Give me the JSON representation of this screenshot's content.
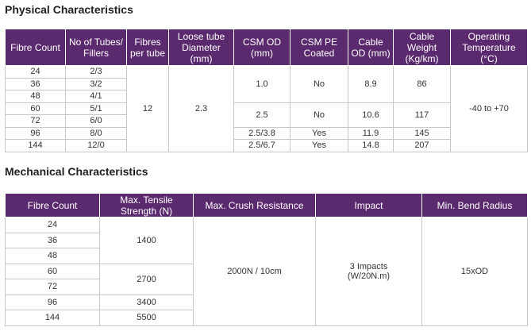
{
  "physical": {
    "title": "Physical Characteristics",
    "headers": {
      "fibre_count": "Fibre Count",
      "tubes_fillers": "No of Tubes/ Fillers",
      "fibres_per_tube": "Fibres per tube",
      "loose_tube_diameter": "Loose tube Diameter (mm)",
      "csm_od": "CSM OD (mm)",
      "csm_pe_coated": "CSM PE Coated",
      "cable_od": "Cable OD (mm)",
      "cable_weight": "Cable Weight (Kg/km)",
      "operating_temperature": "Operating Temperature (°C)"
    },
    "rows": [
      {
        "fibre_count": "24",
        "tubes_fillers": "2/3"
      },
      {
        "fibre_count": "36",
        "tubes_fillers": "3/2"
      },
      {
        "fibre_count": "48",
        "tubes_fillers": "4/1"
      },
      {
        "fibre_count": "60",
        "tubes_fillers": "5/1"
      },
      {
        "fibre_count": "72",
        "tubes_fillers": "6/0"
      },
      {
        "fibre_count": "96",
        "tubes_fillers": "8/0"
      },
      {
        "fibre_count": "144",
        "tubes_fillers": "12/0"
      }
    ],
    "fibres_per_tube": "12",
    "loose_tube_diameter": "2.3",
    "groups": [
      {
        "csm_od": "1.0",
        "csm_pe_coated": "No",
        "cable_od": "8.9",
        "cable_weight": "86"
      },
      {
        "csm_od": "2.5",
        "csm_pe_coated": "No",
        "cable_od": "10.6",
        "cable_weight": "117"
      },
      {
        "csm_od": "2.5/3.8",
        "csm_pe_coated": "Yes",
        "cable_od": "11.9",
        "cable_weight": "145"
      },
      {
        "csm_od": "2.5/6.7",
        "csm_pe_coated": "Yes",
        "cable_od": "14.8",
        "cable_weight": "207"
      }
    ],
    "operating_temperature": "-40 to +70"
  },
  "mechanical": {
    "title": "Mechanical Characteristics",
    "headers": {
      "fibre_count": "Fibre Count",
      "max_tensile": "Max. Tensile Strength (N)",
      "max_crush": "Max. Crush Resistance",
      "impact": "Impact",
      "min_bend": "Min. Bend Radius"
    },
    "fibre_counts": [
      "24",
      "36",
      "48",
      "60",
      "72",
      "96",
      "144"
    ],
    "tensile": [
      "1400",
      "2700",
      "3400",
      "5500"
    ],
    "max_crush": "2000N / 10cm",
    "impact_line1": "3 Impacts",
    "impact_line2": "(W/20N.m)",
    "min_bend": "15xOD"
  }
}
